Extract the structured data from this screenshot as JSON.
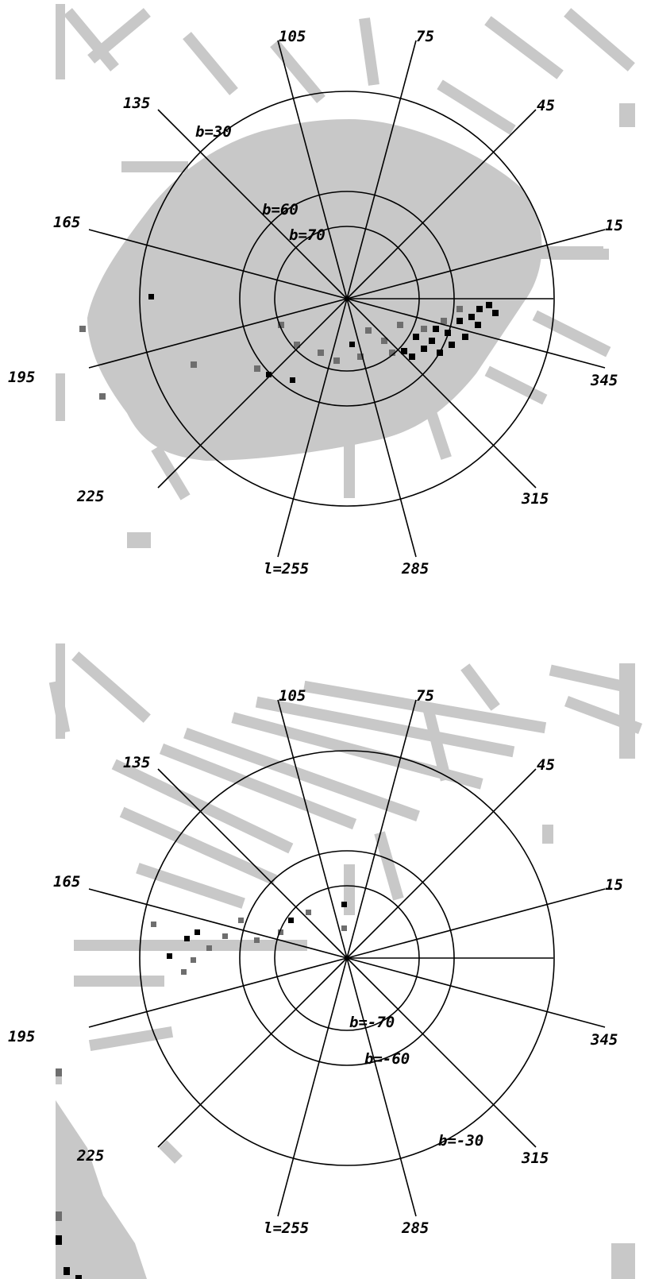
{
  "panels": [
    {
      "id": "north",
      "longitude_labels": [
        "15",
        "45",
        "75",
        "105",
        "135",
        "165",
        "195",
        "225",
        "l=255",
        "285",
        "315",
        "345"
      ],
      "latitude_labels": [
        "b=30",
        "b=60",
        "b=70"
      ]
    },
    {
      "id": "south",
      "longitude_labels": [
        "15",
        "45",
        "75",
        "105",
        "135",
        "165",
        "195",
        "225",
        "l=255",
        "285",
        "315",
        "345"
      ],
      "latitude_labels": [
        "b=-30",
        "b=-60",
        "b=-70"
      ]
    }
  ],
  "colors": {
    "background": "#ffffff",
    "coverage_gray": "#c8c8c8",
    "grid_line": "#000000",
    "density_dark": "#000000"
  }
}
